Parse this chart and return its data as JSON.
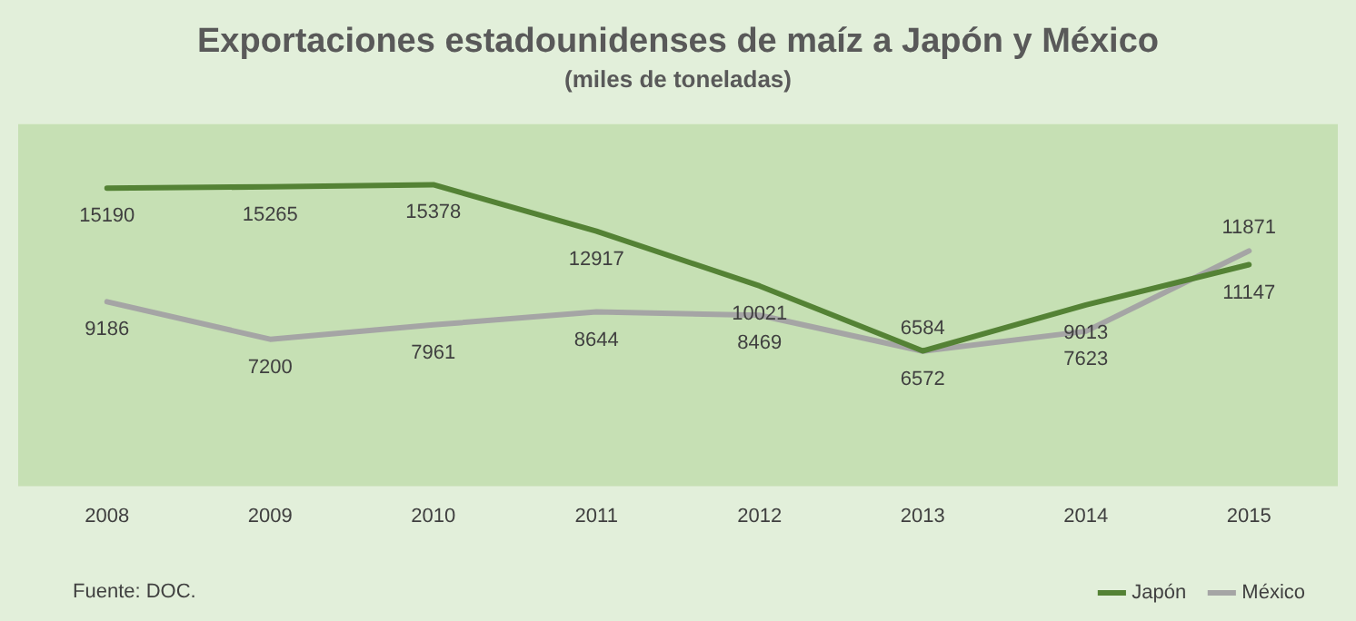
{
  "chart_data": {
    "type": "line",
    "title": "Exportaciones estadounidenses de maíz a Japón y México",
    "subtitle": "(miles de toneladas)",
    "categories": [
      "2008",
      "2009",
      "2010",
      "2011",
      "2012",
      "2013",
      "2014",
      "2015"
    ],
    "series": [
      {
        "name": "Japón",
        "color": "#548235",
        "values": [
          15190,
          15265,
          15378,
          12917,
          10021,
          6584,
          9013,
          11147
        ]
      },
      {
        "name": "México",
        "color": "#a5a5a5",
        "values": [
          9186,
          7200,
          7961,
          8644,
          8469,
          6572,
          7623,
          11871
        ]
      }
    ],
    "tick_labels": "x",
    "data_labels": true,
    "grid": false,
    "legend": "bottom right",
    "marker": "none",
    "line_style": "solid",
    "annotations": [
      "Fuente: DOC."
    ]
  }
}
